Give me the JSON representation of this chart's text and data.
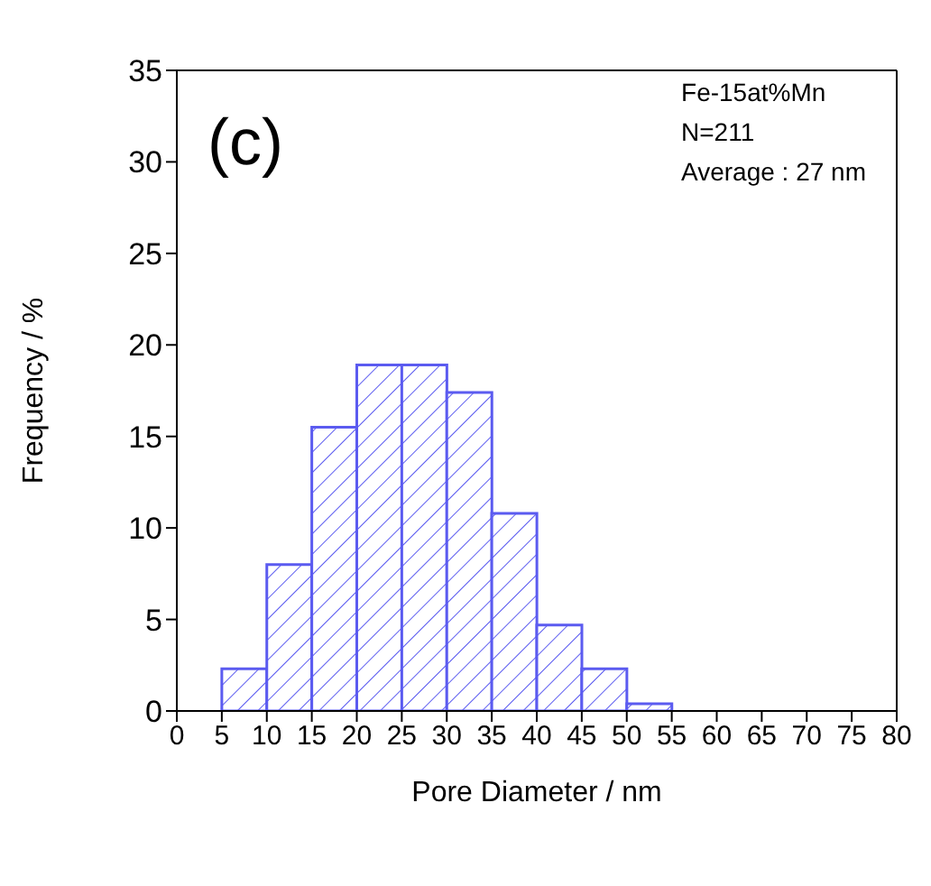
{
  "chart_data": {
    "type": "histogram",
    "xlabel": "Pore Diameter / nm",
    "ylabel": "Frequency / %",
    "bins": [
      5,
      10,
      15,
      20,
      25,
      30,
      35,
      40,
      45,
      50,
      55
    ],
    "values": [
      2.3,
      8.0,
      15.5,
      18.9,
      18.9,
      17.4,
      10.8,
      4.7,
      2.3,
      0.4
    ],
    "color": "#5b5bf0",
    "xlim": [
      0,
      80
    ],
    "xticks": [
      0,
      5,
      10,
      15,
      20,
      25,
      30,
      35,
      40,
      45,
      50,
      55,
      60,
      65,
      70,
      75,
      80
    ],
    "ylim": [
      0,
      35
    ],
    "yticks": [
      0,
      5,
      10,
      15,
      20,
      25,
      30,
      35
    ],
    "grid": false,
    "annotations": [
      "(c)",
      "Fe-15at%Mn",
      "N=211",
      "Average : 27 nm"
    ]
  }
}
